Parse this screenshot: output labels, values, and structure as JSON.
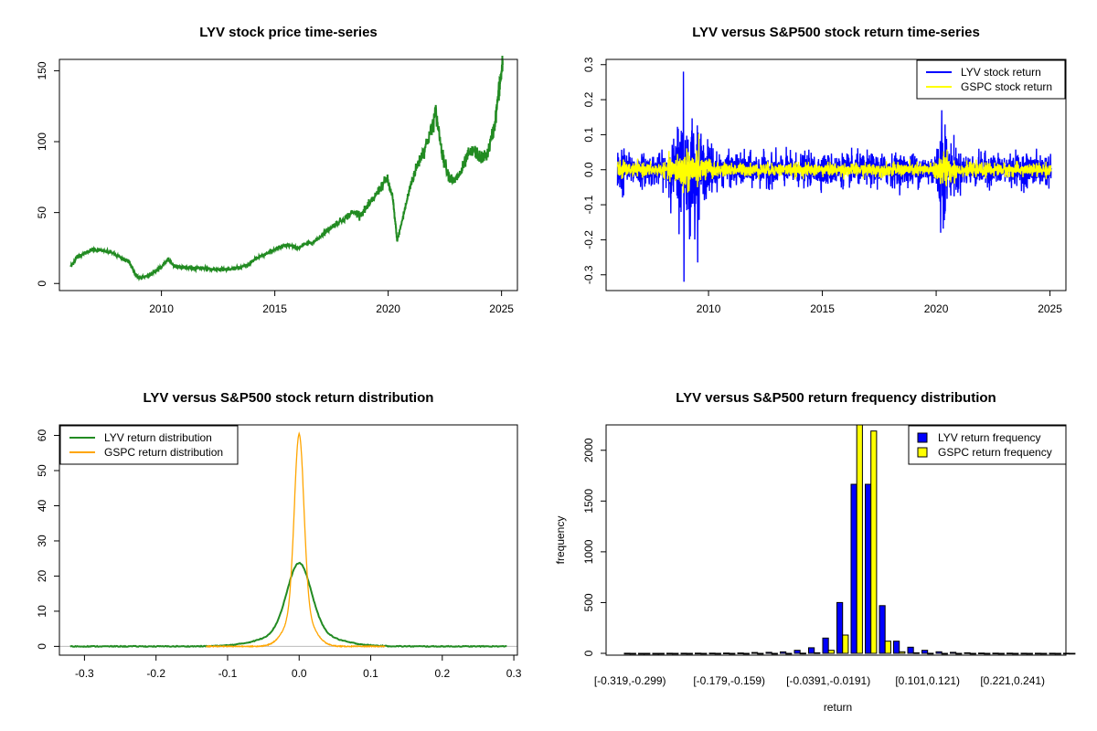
{
  "chart_data": [
    {
      "type": "line",
      "title": "LYV stock price time-series",
      "xlabel": "",
      "ylabel": "",
      "xlim": [
        2005.5,
        2025.7
      ],
      "ylim": [
        -5,
        158
      ],
      "xticks": [
        2010,
        2015,
        2020,
        2025
      ],
      "yticks": [
        0,
        50,
        100,
        150
      ],
      "series": [
        {
          "color": "#228b22",
          "x": [
            2006.0,
            2006.3,
            2006.7,
            2007.0,
            2007.4,
            2007.8,
            2008.2,
            2008.6,
            2008.85,
            2009.0,
            2009.3,
            2009.6,
            2010.0,
            2010.3,
            2010.6,
            2011.0,
            2011.4,
            2011.8,
            2012.2,
            2012.6,
            2013.0,
            2013.4,
            2013.8,
            2014.2,
            2014.6,
            2015.0,
            2015.3,
            2015.6,
            2016.0,
            2016.4,
            2016.8,
            2017.2,
            2017.6,
            2018.0,
            2018.4,
            2018.8,
            2019.2,
            2019.6,
            2019.95,
            2020.2,
            2020.4,
            2020.7,
            2021.0,
            2021.3,
            2021.6,
            2021.9,
            2022.1,
            2022.4,
            2022.7,
            2022.9,
            2023.2,
            2023.5,
            2023.8,
            2024.1,
            2024.4,
            2024.7,
            2024.9,
            2025.05
          ],
          "y": [
            12,
            19,
            22,
            24,
            23,
            22,
            18,
            15,
            6,
            4,
            5,
            7,
            12,
            17,
            12,
            11,
            11,
            11,
            10,
            10,
            10,
            11,
            13,
            18,
            21,
            24,
            26,
            27,
            25,
            28,
            30,
            36,
            41,
            45,
            50,
            49,
            56,
            66,
            74,
            60,
            30,
            50,
            70,
            84,
            95,
            108,
            121,
            90,
            75,
            72,
            78,
            90,
            94,
            88,
            92,
            112,
            138,
            154
          ]
        }
      ]
    },
    {
      "type": "line",
      "title": "LYV versus S&P500 stock return time-series",
      "xlabel": "",
      "ylabel": "",
      "xlim": [
        2005.5,
        2025.7
      ],
      "ylim": [
        -0.345,
        0.315
      ],
      "xticks": [
        2010,
        2015,
        2020,
        2025
      ],
      "yticks": [
        -0.3,
        -0.2,
        -0.1,
        0.0,
        0.1,
        0.2,
        0.3
      ],
      "legend": "top-right",
      "series": [
        {
          "name": "LYV stock return",
          "color": "#0000ff",
          "x_start": 2006.0,
          "x_end": 2025.05
        },
        {
          "name": "GSPC stock return",
          "color": "#ffff00",
          "x_start": 2006.0,
          "x_end": 2025.05
        }
      ],
      "extremes": [
        {
          "x": 2008.9,
          "y": 0.28
        },
        {
          "x": 2008.92,
          "y": -0.32
        },
        {
          "x": 2009.2,
          "y": -0.19
        },
        {
          "x": 2020.2,
          "y": -0.18
        },
        {
          "x": 2020.25,
          "y": 0.17
        }
      ]
    },
    {
      "type": "line",
      "title": "LYV versus S&P500 stock return distribution",
      "xlabel": "",
      "ylabel": "",
      "xlim": [
        -0.335,
        0.305
      ],
      "ylim": [
        -2.5,
        63
      ],
      "xticks": [
        -0.3,
        -0.2,
        -0.1,
        0.0,
        0.1,
        0.2,
        0.3
      ],
      "yticks": [
        0,
        10,
        20,
        30,
        40,
        50,
        60
      ],
      "legend": "top-left",
      "series": [
        {
          "name": "LYV return distribution",
          "color": "#228b22",
          "peak": 23.7,
          "sd": 0.0168,
          "x_range": [
            -0.32,
            0.29
          ]
        },
        {
          "name": "GSPC return distribution",
          "color": "#ffa500",
          "peak": 60.5,
          "sd": 0.0066,
          "x_range": [
            -0.13,
            0.12
          ]
        }
      ]
    },
    {
      "type": "bar",
      "title": "LYV versus S&P500 return frequency distribution",
      "xlabel": "return",
      "ylabel": "frequency",
      "ylim": [
        0,
        2250
      ],
      "yticks": [
        0,
        500,
        1000,
        1500,
        2000
      ],
      "legend": "top-right",
      "tick_labels": [
        {
          "index": 0,
          "label": "[-0.319,-0.299)"
        },
        {
          "index": 7,
          "label": "[-0.179,-0.159)"
        },
        {
          "index": 14,
          "label": "[-0.0391,-0.0191)"
        },
        {
          "index": 21,
          "label": "[0.101,0.121)"
        },
        {
          "index": 27,
          "label": "[0.221,0.241)"
        }
      ],
      "series": [
        {
          "name": "LYV return frequency",
          "color": "#0000ff",
          "values": [
            1,
            0,
            0,
            1,
            1,
            2,
            2,
            3,
            4,
            8,
            10,
            14,
            30,
            55,
            150,
            500,
            1665,
            1665,
            470,
            120,
            60,
            30,
            15,
            10,
            5,
            3,
            2,
            2,
            1,
            1,
            1,
            1
          ]
        },
        {
          "name": "GSPC return frequency",
          "color": "#ffff00",
          "values": [
            0,
            0,
            0,
            0,
            0,
            0,
            0,
            0,
            0,
            0,
            0,
            0,
            2,
            5,
            30,
            180,
            2300,
            2190,
            120,
            15,
            5,
            1,
            0,
            0,
            0,
            0,
            0,
            0,
            0,
            0,
            0,
            0
          ]
        }
      ]
    }
  ]
}
